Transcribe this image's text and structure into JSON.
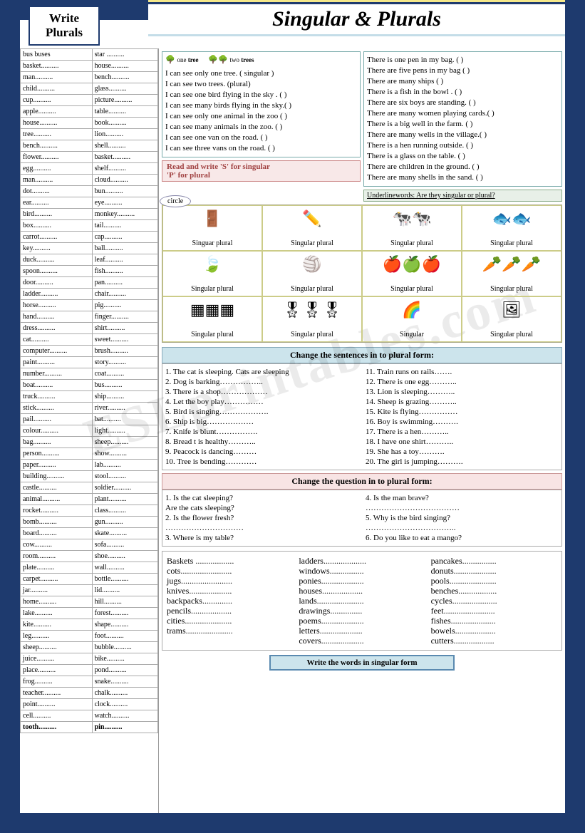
{
  "colors": {
    "border": "#1e3a6e",
    "headBlue": "#cce4ec",
    "headPink": "#f8e4e4"
  },
  "badge": {
    "line1": "Write",
    "line2": "Plurals"
  },
  "mainTitle": "Singular & Plurals",
  "watermark": "ESLprintables.com",
  "wordsLeft": [
    "bus       buses",
    "basket..........",
    "man..........",
    "child..........",
    "cup..........",
    "apple..........",
    "house..........",
    "tree..........",
    "bench..........",
    "flower..........",
    "egg..........",
    "man..........",
    "dot..........",
    "ear..........",
    "bird..........",
    "box..........",
    "carrot..........",
    "key..........",
    "duck..........",
    "spoon..........",
    "door..........",
    "ladder..........",
    "horse..........",
    "hand..........",
    "dress..........",
    "cat..........",
    "computer..........",
    "paint..........",
    "number..........",
    "boat..........",
    "truck..........",
    "stick..........",
    "pail..........",
    "colour..........",
    "bag..........",
    "person..........",
    "paper..........",
    "building..........",
    "castle..........",
    "animal..........",
    "rocket..........",
    "bomb..........",
    "board..........",
    "cow..........",
    "room..........",
    "plate..........",
    "carpet..........",
    "jar..........",
    "home..........",
    "lake..........",
    "kite..........",
    "leg..........",
    "sheep..........",
    "juice..........",
    "place..........",
    "frog..........",
    "teacher..........",
    "point..........",
    "cell..........",
    "tooth.........."
  ],
  "wordsRight": [
    "star ..........",
    "house..........",
    "bench..........",
    "glass..........",
    "picture..........",
    "table..........",
    "book..........",
    "lion..........",
    "shell..........",
    "basket..........",
    "shelf..........",
    "cloud..........",
    "bun..........",
    "eye..........",
    "monkey..........",
    "tail..........",
    "cap..........",
    "ball..........",
    "leaf..........",
    "fish..........",
    "pan..........",
    "chair..........",
    "pig..........",
    "finger..........",
    "shirt..........",
    "sweet..........",
    "brush..........",
    "story..........",
    "coat..........",
    "bus..........",
    "ship..........",
    "river..........",
    "bat..........",
    "light..........",
    "sheep..........",
    "show..........",
    "lab..........",
    "stool..........",
    "soldier..........",
    "plant..........",
    "class..........",
    "gun..........",
    "skate..........",
    "sofa..........",
    "shoe..........",
    "wall..........",
    "bottle..........",
    "lid..........",
    "hill..........",
    "forest..........",
    "shape..........",
    "foot..........",
    "bubble..........",
    "bike..........",
    "pond..........",
    "snake..........",
    "chalk..........",
    "clock..........",
    "watch..........",
    "pin.........."
  ],
  "treeLabel1": "one tree",
  "treeLabel2": "two trees",
  "box1Lines": [
    "I can see only one tree. ( singular )",
    "I can see two trees. (plural)",
    "I can see one bird flying in the sky .   (      )",
    "I can see many birds  flying in the sky.(      )",
    "I can see  only one animal in the zoo  (      )",
    "I can see many animals in the zoo.     (      )",
    "I can see one van on the road.            (      )",
    "I can see three vans on the road.        (      )"
  ],
  "box2Lines": [
    "There is one pen in my bag.       (      )",
    "There are five pens in my bag    (      )",
    "There are many ships                 (      )",
    "There is a fish in the bowl .         (      )",
    "There are six boys are standing. (      )",
    "There are many women playing cards.(   )",
    "There is a  big well in the farm.  (      )",
    "There are many wells in the village.(    )",
    "There is a hen running outside.   (      )",
    "There is a glass on the table.       (      )",
    "There are children in the ground. (      )",
    "There are many shells in the sand.   (    )"
  ],
  "instrPink": "Read and write 'S' for singular\n                        'P' for plural",
  "instrUnderline": "Underlinewords: Are they singular or plural?",
  "circleLabel": "circle",
  "circleCells": [
    {
      "icon": "🚪",
      "label": "Singuar    plural"
    },
    {
      "icon": "✏️",
      "label": "Singular    plural"
    },
    {
      "icon": "🐄🐄",
      "label": "Singular    plural"
    },
    {
      "icon": "🐟🐟",
      "label": "Singular    plural"
    },
    {
      "icon": "🍃",
      "label": "Singular    plural"
    },
    {
      "icon": "🏐",
      "label": "Singular    plural"
    },
    {
      "icon": "🍎🍏🍎",
      "label": "Singular    plural"
    },
    {
      "icon": "🥕🥕🥕",
      "label": "Singular    plural"
    },
    {
      "icon": "▦▦▦",
      "label": "Singular    plural"
    },
    {
      "icon": "🎖🎖🎖",
      "label": "Singular    plural"
    },
    {
      "icon": "🌈",
      "label": "Singular"
    },
    {
      "icon": "🖼",
      "label": "Singular    plural"
    }
  ],
  "headChange": "Change the sentences in to plural form:",
  "sentLeft": [
    "1.    The cat is sleeping. Cats are sleeping",
    "2.    Dog is barking……………..",
    "3.    There is a shop………………",
    "4.    Let the boy play……………",
    "5.    Bird is singing……………….",
    "6.    Ship is big………………",
    "7.    Knife is blunt…………….",
    "8.    Bread t is healthy………..",
    "9.    Peacock is dancing………",
    "10.   Tree is bending…………"
  ],
  "sentRight": [
    "11.   Train  runs on rails…….",
    "12.   There is one egg………..",
    "13.   Lion is sleeping………..",
    "14.   Sheep is grazing………..",
    "15.   Kite is flying……………",
    "16.   Boy is swimming……….",
    "17.   There is a hen………..",
    "18.   I have  one shirt………..",
    "19.   She has a toy……….",
    "20.   The girl is jumping………."
  ],
  "headQuestion": "Change the question in to plural form:",
  "qLeft": [
    "1.    Is the cat sleeping?",
    "       Are the cats sleeping?",
    "2.    Is the flower  fresh?",
    "…………………………",
    "3.    Where is my table?"
  ],
  "qRight": [
    "4.    Is the man brave?",
    "………………………………",
    "5.    Why is the bird singing?",
    "……………………………..",
    "6.    Do you like to eat a mango?"
  ],
  "triple1": [
    "Baskets ..................",
    "cots........................",
    "jugs........................",
    "knives....................",
    "backpacks..............",
    "pencils...................",
    "cities......................",
    "trams......................"
  ],
  "triple2": [
    "ladders....................",
    "windows................",
    "ponies....................",
    "houses...................",
    "lands......................",
    "drawings...............",
    "poems....................",
    "letters....................",
    "covers...................."
  ],
  "triple3": [
    "pancakes................",
    "donuts....................",
    "pools......................",
    "benches..................",
    "cycles.....................",
    "feet........................",
    "fishes.....................",
    "bowels...................",
    "cutters..................."
  ],
  "footer": "Write the words in singular form"
}
